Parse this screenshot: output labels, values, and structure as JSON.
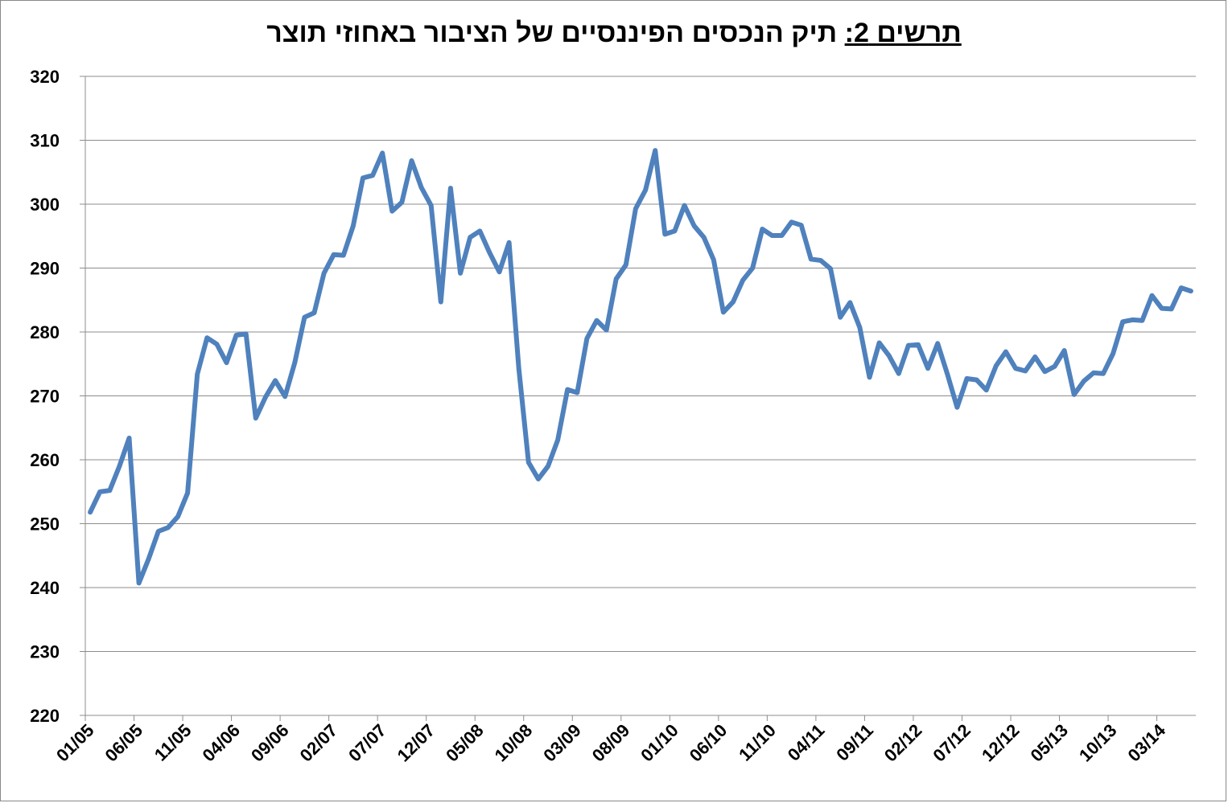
{
  "chart_data": {
    "type": "line",
    "title_prefix": "תרשים 2:",
    "title_main": "תיק הנכסים הפיננסיים של הציבור באחוזי תוצר",
    "xlabel": "",
    "ylabel": "",
    "ylim": [
      220,
      320
    ],
    "yticks": [
      "220",
      "230",
      "240",
      "250",
      "260",
      "270",
      "280",
      "290",
      "300",
      "310",
      "320"
    ],
    "xtick_labels": [
      "01/05",
      "06/05",
      "11/05",
      "04/06",
      "09/06",
      "02/07",
      "07/07",
      "12/07",
      "05/08",
      "10/08",
      "03/09",
      "08/09",
      "01/10",
      "06/10",
      "11/10",
      "04/11",
      "09/11",
      "02/12",
      "07/12",
      "12/12",
      "05/13",
      "10/13",
      "03/14"
    ],
    "grid": true,
    "legend": "none",
    "line_color": "#4f81bd",
    "x_start": "01/05",
    "x_end": "07/14",
    "series": [
      {
        "values": [
          251.8,
          255.0,
          255.2,
          259.0,
          263.4,
          240.7,
          244.5,
          248.8,
          249.4,
          251.1,
          254.8,
          273.4,
          279.1,
          278.1,
          275.2,
          279.5,
          279.7,
          266.5,
          269.8,
          272.4,
          269.9,
          275.2,
          282.3,
          283.0,
          289.2,
          292.1,
          292.0,
          296.6,
          304.1,
          304.5,
          308.0,
          298.9,
          300.3,
          306.8,
          302.6,
          299.8,
          284.7,
          302.5,
          289.2,
          294.8,
          295.8,
          292.4,
          289.4,
          294.0,
          274.3,
          259.6,
          257.0,
          259.0,
          263.1,
          271.0,
          270.5,
          279.0,
          281.8,
          280.3,
          288.3,
          290.5,
          299.3,
          302.2,
          308.4,
          295.3,
          295.8,
          299.8,
          296.6,
          294.8,
          291.3,
          283.1,
          284.7,
          288.1,
          290.0,
          296.1,
          295.1,
          295.1,
          297.2,
          296.7,
          291.4,
          291.2,
          289.9,
          282.3,
          284.6,
          280.7,
          272.9,
          278.3,
          276.3,
          273.5,
          277.9,
          278.0,
          274.3,
          278.2,
          273.4,
          268.2,
          272.7,
          272.5,
          270.9,
          274.7,
          276.9,
          274.3,
          273.9,
          276.1,
          273.8,
          274.6,
          277.1,
          270.2,
          272.3,
          273.6,
          273.5,
          276.6,
          281.6,
          281.9,
          281.8,
          285.7,
          283.7,
          283.6,
          286.9,
          286.4
        ]
      }
    ]
  }
}
